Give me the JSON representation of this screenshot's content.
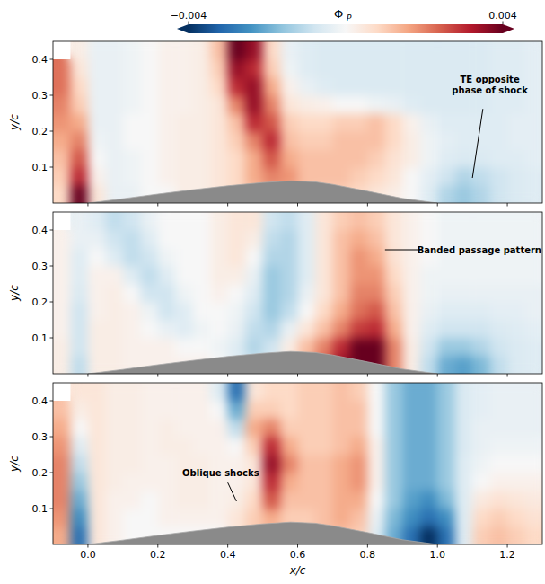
{
  "chart_data": {
    "type": "heatmap",
    "colorbar": {
      "label": "Φ",
      "label_subscript": "P",
      "range": [
        -0.004,
        0.004
      ],
      "ticks": [
        {
          "value": -0.004,
          "label": "−0.004"
        },
        {
          "value": 0.004,
          "label": "0.004"
        }
      ]
    },
    "xlabel": "x/c",
    "ylabel": "y/c",
    "xlim": [
      -0.1,
      1.3
    ],
    "ylim": [
      0,
      0.45
    ],
    "xticks": [
      {
        "value": 0,
        "label": "0.0"
      },
      0.2,
      0.4,
      0.6,
      0.8,
      {
        "value": 1,
        "label": "1.0"
      },
      1.2
    ],
    "yticks": [
      0.1,
      0.2,
      0.3,
      0.4
    ],
    "x": [
      -0.075,
      -0.025,
      0.025,
      0.075,
      0.125,
      0.175,
      0.225,
      0.275,
      0.325,
      0.375,
      0.425,
      0.475,
      0.525,
      0.575,
      0.625,
      0.675,
      0.725,
      0.775,
      0.825,
      0.875,
      0.925,
      0.975,
      1.025,
      1.075,
      1.125,
      1.175,
      1.225,
      1.275
    ],
    "y": [
      0.025,
      0.075,
      0.125,
      0.175,
      0.225,
      0.275,
      0.325,
      0.375,
      0.425
    ],
    "geometry": {
      "x": [
        0,
        0.1,
        0.2,
        0.3,
        0.4,
        0.5,
        0.58,
        0.65,
        0.7,
        0.8,
        0.9,
        1.0
      ],
      "y": [
        0,
        0.012,
        0.025,
        0.037,
        0.048,
        0.057,
        0.062,
        0.059,
        0.052,
        0.033,
        0.013,
        0
      ]
    },
    "panels": [
      {
        "annotations": [
          {
            "text": "TE opposite phase of shock"
          }
        ],
        "values": [
          [
            0.0008,
            0.004,
            0.0005,
            -0.0003,
            -0.0003,
            0,
            0,
            0.0003,
            0.0003,
            0.0005,
            0.0008,
            0.0012,
            0.0015,
            0.0015,
            0.0012,
            0.001,
            0.001,
            0.0008,
            0.0005,
            0.0003,
            0,
            -0.0005,
            -0.0012,
            -0.0015,
            -0.0012,
            -0.0008,
            -0.0006,
            -0.0005
          ],
          [
            0.001,
            0.003,
            0.0002,
            -0.0003,
            -0.0002,
            0,
            0.0002,
            0.0003,
            0.0003,
            0.0005,
            0.0008,
            0.0015,
            0.002,
            0.0018,
            0.0012,
            0.0012,
            0.0012,
            0.001,
            0.0008,
            0.0005,
            0,
            -0.0004,
            -0.0008,
            -0.0012,
            -0.001,
            -0.0008,
            -0.0006,
            -0.0005
          ],
          [
            0.0012,
            0.0025,
            0,
            -0.0003,
            -0.0002,
            0,
            0.0002,
            0.0003,
            0.0003,
            0.0005,
            0.0008,
            0.0015,
            0.0025,
            0.0015,
            0.0012,
            0.0012,
            0.0012,
            0.0012,
            0.001,
            0.0006,
            0.0003,
            -0.0002,
            -0.0005,
            -0.0006,
            -0.0006,
            -0.0005,
            -0.0005,
            -0.0004
          ],
          [
            0.0015,
            0.002,
            -0.0002,
            -0.0003,
            0,
            0,
            0.0002,
            0.0003,
            0.0003,
            0.0005,
            0.001,
            0.002,
            0.003,
            0.0012,
            0.001,
            0.001,
            0.0012,
            0.0012,
            0.0012,
            0.0008,
            0.0003,
            -0.0002,
            -0.0004,
            -0.0005,
            -0.0005,
            -0.0005,
            -0.0004,
            -0.0004
          ],
          [
            0.0018,
            0.0015,
            -0.0003,
            -0.0003,
            0,
            0,
            0.0002,
            0.0003,
            0.0003,
            0.0005,
            0.0012,
            0.003,
            0.0025,
            0.001,
            0.0008,
            0.0008,
            0.001,
            0.001,
            0.0012,
            0.0008,
            0.0002,
            -0.0003,
            -0.0005,
            -0.0005,
            -0.0005,
            -0.0005,
            -0.0004,
            -0.0004
          ],
          [
            0.002,
            0.001,
            -0.0003,
            -0.0003,
            -0.0002,
            0,
            0.0002,
            0.0002,
            0.0003,
            0.0005,
            0.002,
            0.0035,
            0.002,
            0.0005,
            0.0003,
            0.0002,
            0,
            0,
            -0.0002,
            -0.0003,
            -0.0005,
            -0.0006,
            -0.0006,
            -0.0006,
            -0.0006,
            -0.0005,
            -0.0005,
            -0.0004
          ],
          [
            0.0022,
            0.0008,
            -0.0003,
            -0.0003,
            -0.0002,
            0,
            0.0002,
            0.0002,
            0.0003,
            0.0008,
            0.003,
            0.0035,
            0.0015,
            0.0002,
            -0.0003,
            -0.0005,
            -0.0006,
            -0.0006,
            -0.0006,
            -0.0006,
            -0.0006,
            -0.0006,
            -0.0006,
            -0.0006,
            -0.0006,
            -0.0005,
            -0.0005,
            -0.0004
          ],
          [
            0.0022,
            0.0005,
            -0.0003,
            -0.0003,
            -0.0002,
            0,
            0.0002,
            0.0002,
            0.0003,
            0.001,
            0.0035,
            0.003,
            0.001,
            -0.0002,
            -0.0005,
            -0.0006,
            -0.0006,
            -0.0006,
            -0.0006,
            -0.0006,
            -0.0006,
            -0.0006,
            -0.0006,
            -0.0006,
            -0.0006,
            -0.0005,
            -0.0005,
            -0.0004
          ],
          [
            null,
            0.0003,
            -0.0003,
            -0.0003,
            -0.0002,
            0,
            0.0002,
            0.0002,
            0.0003,
            0.0012,
            0.004,
            0.0035,
            0.0008,
            -0.0003,
            -0.0005,
            -0.0006,
            -0.0006,
            -0.0006,
            -0.0006,
            -0.0006,
            -0.0006,
            -0.0006,
            -0.0006,
            -0.0006,
            -0.0006,
            -0.0005,
            -0.0005,
            -0.0004
          ]
        ]
      },
      {
        "annotations": [
          {
            "text": "Banded passage pattern"
          }
        ],
        "values": [
          [
            0.0003,
            -0.001,
            0.0003,
            0.0003,
            0.0002,
            0.0002,
            0.0002,
            0.0002,
            0.0002,
            0,
            -0.0005,
            -0.0008,
            -0.0005,
            0.0005,
            0.0015,
            0.0025,
            0.0035,
            0.004,
            0.004,
            0.002,
            0.0003,
            -0.001,
            -0.002,
            -0.0022,
            -0.0018,
            -0.001,
            -0.0006,
            -0.0005
          ],
          [
            0.0003,
            -0.0008,
            0.0003,
            0.0003,
            0.0002,
            0.0002,
            0.0002,
            0,
            0,
            -0.0002,
            -0.0005,
            -0.0012,
            -0.0008,
            0.0003,
            0.0012,
            0.002,
            0.003,
            0.004,
            0.004,
            0.002,
            0.0003,
            -0.0008,
            -0.0015,
            -0.0015,
            -0.0012,
            -0.0008,
            -0.0006,
            -0.0005
          ],
          [
            0.0002,
            -0.0008,
            0.0003,
            0.0003,
            0.0002,
            0,
            -0.0003,
            -0.0005,
            -0.0002,
            0,
            -0.0003,
            -0.001,
            -0.0012,
            -0.0003,
            0.0005,
            0.0012,
            0.002,
            0.0028,
            0.003,
            0.0015,
            0.0002,
            -0.0005,
            -0.0008,
            -0.0008,
            -0.0008,
            -0.0006,
            -0.0005,
            -0.0004
          ],
          [
            0.0002,
            -0.0008,
            0.0002,
            0.0003,
            0.0002,
            -0.0002,
            -0.0008,
            -0.0005,
            0,
            0,
            -0.0002,
            -0.0008,
            -0.0015,
            -0.001,
            0,
            0.0008,
            0.0015,
            0.0022,
            0.0025,
            0.0012,
            0.0002,
            -0.0003,
            -0.0005,
            -0.0005,
            -0.0005,
            -0.0004,
            -0.0004,
            -0.0003
          ],
          [
            0.0002,
            -0.0006,
            0.0002,
            0.0003,
            0,
            -0.0008,
            -0.0008,
            -0.0002,
            0,
            0.0002,
            0,
            -0.0005,
            -0.0015,
            -0.0012,
            -0.0003,
            0.0005,
            0.0012,
            0.002,
            0.002,
            0.001,
            0.0002,
            -0.0002,
            -0.0003,
            -0.0003,
            -0.0003,
            -0.0003,
            -0.0003,
            -0.0003
          ],
          [
            0.0002,
            -0.0005,
            0.0002,
            0.0002,
            -0.0005,
            -0.001,
            -0.0005,
            0,
            0,
            0.0003,
            0.0003,
            -0.0003,
            -0.0015,
            -0.0012,
            -0.0005,
            0.0005,
            0.0012,
            0.0018,
            0.0018,
            0.0008,
            0.0002,
            -0.0002,
            -0.0002,
            -0.0002,
            -0.0002,
            -0.0002,
            -0.0002,
            -0.0002
          ],
          [
            0.0002,
            -0.0005,
            0,
            -0.0005,
            -0.001,
            -0.0008,
            -0.0002,
            0,
            0,
            0.0003,
            0.0005,
            0,
            -0.0012,
            -0.0012,
            -0.0005,
            0.0005,
            0.0012,
            0.0018,
            0.0015,
            0.0006,
            0.0002,
            0,
            -0.0002,
            -0.0002,
            -0.0002,
            -0.0002,
            -0.0002,
            -0.0002
          ],
          [
            0.0002,
            -0.0003,
            -0.0003,
            -0.0008,
            -0.001,
            -0.0005,
            0,
            0,
            0,
            0.0003,
            0.0005,
            0.0003,
            -0.001,
            -0.0012,
            -0.0005,
            0.0005,
            0.0012,
            0.0015,
            0.0012,
            0.0005,
            0.0002,
            0,
            -0.0002,
            -0.0002,
            -0.0002,
            -0.0002,
            -0.0002,
            -0.0002
          ],
          [
            null,
            -0.0003,
            -0.0005,
            -0.001,
            -0.0008,
            -0.0003,
            0,
            0,
            0,
            0.0003,
            0.0005,
            0.0005,
            -0.0008,
            -0.001,
            -0.0005,
            0.0005,
            0.001,
            0.0012,
            0.001,
            0.0005,
            0.0002,
            0,
            -0.0002,
            -0.0002,
            -0.0002,
            -0.0002,
            -0.0002,
            -0.0002
          ]
        ]
      },
      {
        "annotations": [
          {
            "text": "Oblique shocks"
          }
        ],
        "values": [
          [
            0.0015,
            -0.003,
            0.0005,
            0.0002,
            0,
            0,
            0,
            0,
            0,
            0,
            0.0005,
            0.001,
            0.0012,
            0.0012,
            0.001,
            0.0012,
            0.0012,
            0.001,
            -0.0005,
            -0.002,
            -0.003,
            -0.004,
            -0.003,
            -0.0005,
            0.001,
            0.0012,
            0.001,
            0.0008
          ],
          [
            0.0018,
            -0.0025,
            0.0005,
            0.0002,
            0,
            0,
            0.0002,
            0.0002,
            0.0002,
            0.0002,
            0.0005,
            0.001,
            0.0015,
            0.001,
            0.001,
            0.0012,
            0.0015,
            0.0012,
            -0.0003,
            -0.0018,
            -0.0025,
            -0.003,
            -0.0025,
            -0.0005,
            0.0008,
            0.001,
            0.0008,
            0.0006
          ],
          [
            0.002,
            -0.002,
            0.0005,
            0.0002,
            0.0002,
            0,
            0.0002,
            0.0003,
            0.0003,
            0.0002,
            0.0003,
            0.0008,
            0.0025,
            0.0012,
            0.0012,
            0.0012,
            0.0015,
            0.0015,
            0,
            -0.0015,
            -0.0022,
            -0.0025,
            -0.0018,
            -0.0005,
            0.0004,
            0.0006,
            0.0005,
            0.0004
          ],
          [
            0.002,
            -0.0015,
            0.0005,
            0.0003,
            0.0002,
            0.0002,
            0.0002,
            0.0003,
            0.0003,
            0.0002,
            0.0002,
            0.0005,
            0.003,
            0.0015,
            0.0012,
            0.0012,
            0.0015,
            0.0018,
            0.0002,
            -0.0015,
            -0.002,
            -0.002,
            -0.0015,
            -0.0005,
            0,
            0.0002,
            0.0002,
            0.0002
          ],
          [
            0.002,
            -0.001,
            0.0005,
            0.0003,
            0.0003,
            0.0002,
            0.0002,
            0.0003,
            0.0003,
            0.0002,
            0.0002,
            0.0005,
            0.0035,
            0.002,
            0.0012,
            0.0012,
            0.0015,
            0.0018,
            0.0002,
            -0.0015,
            -0.002,
            -0.002,
            -0.0015,
            -0.0005,
            -0.0002,
            0,
            0,
            0
          ],
          [
            0.0018,
            -0.0005,
            0.0005,
            0.0003,
            0.0003,
            0.0002,
            0.0003,
            0.0003,
            0.0002,
            0.0002,
            0,
            0.001,
            0.003,
            0.0015,
            0.001,
            0.001,
            0.0012,
            0.0015,
            0.0002,
            -0.0015,
            -0.002,
            -0.002,
            -0.0015,
            -0.0006,
            -0.0003,
            -0.0002,
            -0.0002,
            -0.0002
          ],
          [
            0.0015,
            0,
            0.0005,
            0.0003,
            0.0003,
            0.0002,
            0.0003,
            0.0002,
            0.0002,
            0.0002,
            -0.001,
            0.0015,
            0.002,
            0.001,
            0.001,
            0.001,
            0.0012,
            0.0012,
            0,
            -0.0015,
            -0.002,
            -0.002,
            -0.0015,
            -0.0006,
            -0.0003,
            -0.0003,
            -0.0003,
            -0.0003
          ],
          [
            0.0012,
            0.0003,
            0.0005,
            0.0003,
            0.0003,
            0.0002,
            0.0002,
            0.0002,
            0.0002,
            0,
            -0.002,
            0.001,
            0.001,
            0.0008,
            0.001,
            0.001,
            0.0012,
            0.0012,
            0,
            -0.0015,
            -0.002,
            -0.002,
            -0.0015,
            -0.0006,
            -0.0004,
            -0.0003,
            -0.0003,
            -0.0003
          ],
          [
            null,
            0.0005,
            0.0005,
            0.0003,
            0.0003,
            0.0002,
            0.0002,
            0.0002,
            0.0002,
            -0.0005,
            -0.003,
            0.0005,
            0.0008,
            0.0008,
            0.001,
            0.001,
            0.0012,
            0.001,
            0,
            -0.0015,
            -0.002,
            -0.002,
            -0.0015,
            -0.0006,
            -0.0004,
            -0.0003,
            -0.0003,
            -0.0003
          ]
        ]
      }
    ]
  }
}
